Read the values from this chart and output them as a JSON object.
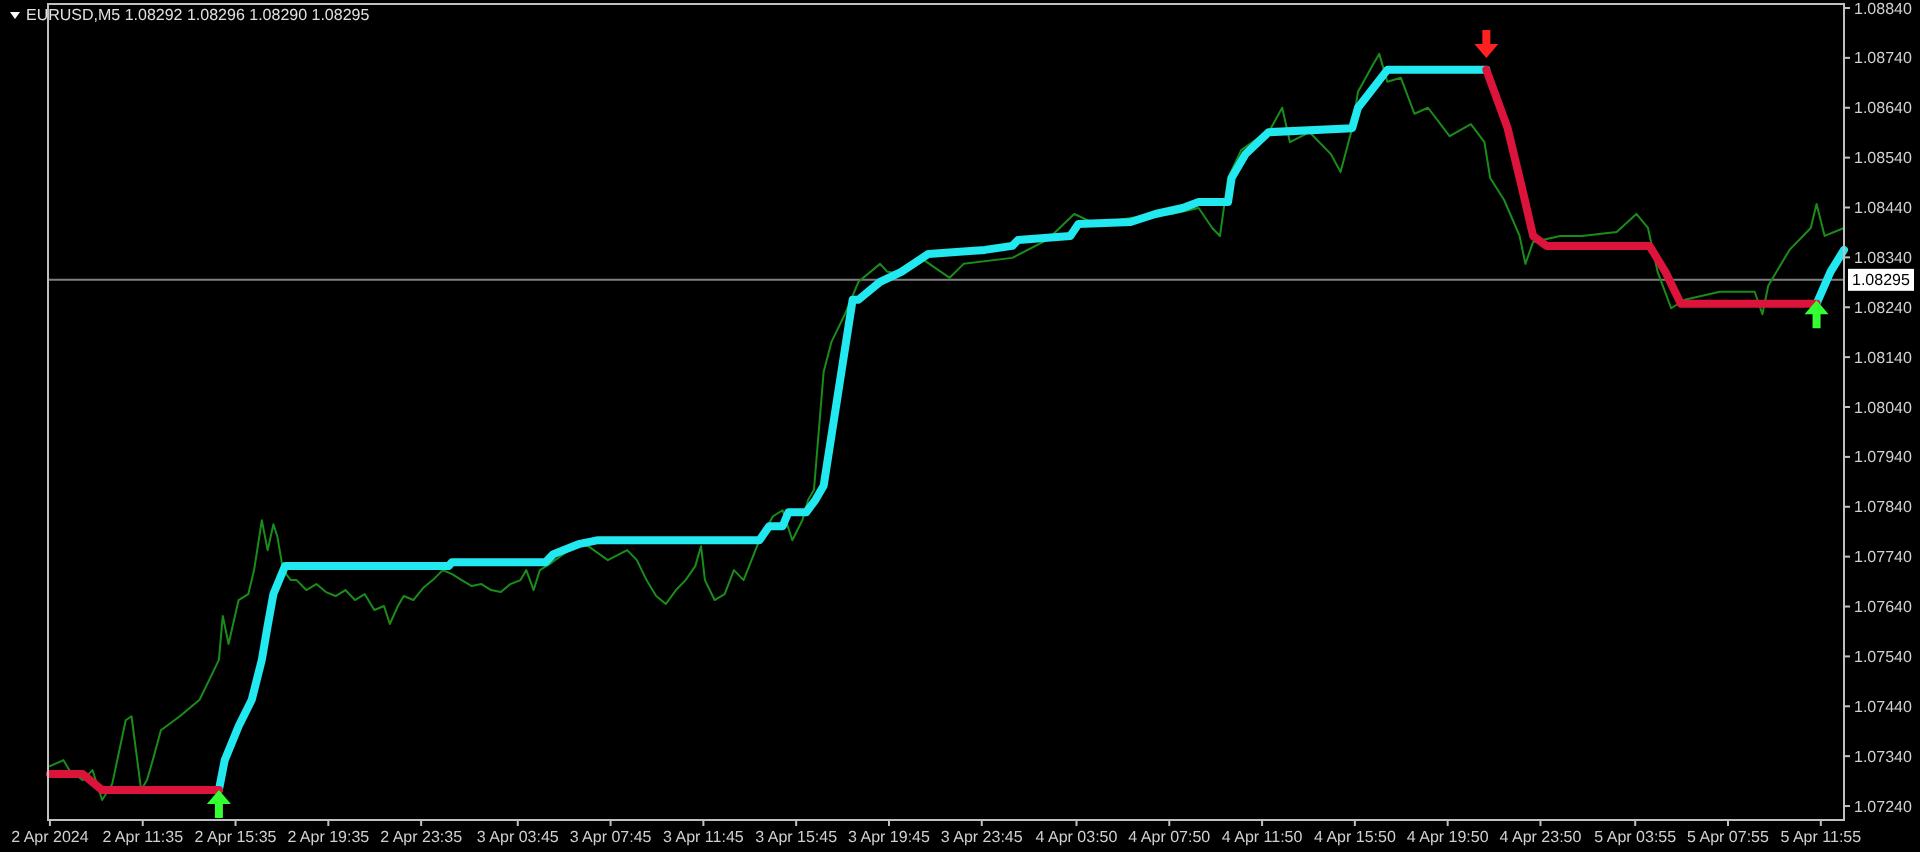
{
  "chart_data": {
    "type": "line",
    "title": "EURUSD,M5  1.08292 1.08296 1.08290 1.08295",
    "xlim": [
      "2024-04-02T07:30",
      "2024-04-05T12:55"
    ],
    "xticks": [
      {
        "value": "2024-04-02T07:35",
        "label": "2 Apr 2024"
      },
      {
        "value": "2024-04-02T11:35",
        "label": "2 Apr 11:35"
      },
      {
        "value": "2024-04-02T15:35",
        "label": "2 Apr 15:35"
      },
      {
        "value": "2024-04-02T19:35",
        "label": "2 Apr 19:35"
      },
      {
        "value": "2024-04-02T23:35",
        "label": "2 Apr 23:35"
      },
      {
        "value": "2024-04-03T03:45",
        "label": "3 Apr 03:45"
      },
      {
        "value": "2024-04-03T07:45",
        "label": "3 Apr 07:45"
      },
      {
        "value": "2024-04-03T11:45",
        "label": "3 Apr 11:45"
      },
      {
        "value": "2024-04-03T15:45",
        "label": "3 Apr 15:45"
      },
      {
        "value": "2024-04-03T19:45",
        "label": "3 Apr 19:45"
      },
      {
        "value": "2024-04-03T23:45",
        "label": "3 Apr 23:45"
      },
      {
        "value": "2024-04-04T03:50",
        "label": "4 Apr 03:50"
      },
      {
        "value": "2024-04-04T07:50",
        "label": "4 Apr 07:50"
      },
      {
        "value": "2024-04-04T11:50",
        "label": "4 Apr 11:50"
      },
      {
        "value": "2024-04-04T15:50",
        "label": "4 Apr 15:50"
      },
      {
        "value": "2024-04-04T19:50",
        "label": "4 Apr 19:50"
      },
      {
        "value": "2024-04-04T23:50",
        "label": "4 Apr 23:50"
      },
      {
        "value": "2024-04-05T03:55",
        "label": "5 Apr 03:55"
      },
      {
        "value": "2024-04-05T07:55",
        "label": "5 Apr 07:55"
      },
      {
        "value": "2024-04-05T11:55",
        "label": "5 Apr 11:55"
      }
    ],
    "ylim": [
      1.07212,
      1.08848
    ],
    "yticks": [
      {
        "value": 1.0884,
        "label": "1.08840"
      },
      {
        "value": 1.0874,
        "label": "1.08740"
      },
      {
        "value": 1.0864,
        "label": "1.08640"
      },
      {
        "value": 1.0854,
        "label": "1.08540"
      },
      {
        "value": 1.0844,
        "label": "1.08440"
      },
      {
        "value": 1.0834,
        "label": "1.08340"
      },
      {
        "value": 1.0824,
        "label": "1.08240"
      },
      {
        "value": 1.0814,
        "label": "1.08140"
      },
      {
        "value": 1.0804,
        "label": "1.08040"
      },
      {
        "value": 1.0794,
        "label": "1.07940"
      },
      {
        "value": 1.0784,
        "label": "1.07840"
      },
      {
        "value": 1.0774,
        "label": "1.07740"
      },
      {
        "value": 1.0764,
        "label": "1.07640"
      },
      {
        "value": 1.0754,
        "label": "1.07540"
      },
      {
        "value": 1.0744,
        "label": "1.07440"
      },
      {
        "value": 1.0734,
        "label": "1.07340"
      },
      {
        "value": 1.0724,
        "label": "1.07240"
      }
    ],
    "ref_lines": [
      {
        "axis": "y",
        "value": 1.08295,
        "label": "1.08295",
        "color": "#808080"
      }
    ],
    "line_style": "solid",
    "series": [
      {
        "color": "#1a8c1a",
        "x": [
          "2024-04-02T07:35",
          "2024-04-02T08:10",
          "2024-04-02T08:25",
          "2024-04-02T09:00",
          "2024-04-02T09:25",
          "2024-04-02T09:50",
          "2024-04-02T10:16",
          "2024-04-02T10:51",
          "2024-04-02T11:06",
          "2024-04-02T11:31",
          "2024-04-02T11:46",
          "2024-04-02T12:01",
          "2024-04-02T12:22",
          "2024-04-02T13:11",
          "2024-04-02T14:02",
          "2024-04-02T14:27",
          "2024-04-02T14:52",
          "2024-04-02T15:02",
          "2024-04-02T15:17",
          "2024-04-02T15:43",
          "2024-04-02T16:08",
          "2024-04-02T16:23",
          "2024-04-02T16:43",
          "2024-04-02T16:58",
          "2024-04-02T17:13",
          "2024-04-02T17:23",
          "2024-04-02T17:38",
          "2024-04-02T17:58",
          "2024-04-02T18:13",
          "2024-04-02T18:38",
          "2024-04-02T19:04",
          "2024-04-02T19:29",
          "2024-04-02T19:54",
          "2024-04-02T20:19",
          "2024-04-02T20:44",
          "2024-04-02T21:09",
          "2024-04-02T21:34",
          "2024-04-02T21:59",
          "2024-04-02T22:14",
          "2024-04-02T22:35",
          "2024-04-02T22:50",
          "2024-04-02T23:15",
          "2024-04-02T23:40",
          "2024-04-03T00:05",
          "2024-04-03T00:31",
          "2024-04-03T00:55",
          "2024-04-03T01:20",
          "2024-04-03T01:46",
          "2024-04-03T02:11",
          "2024-04-03T02:36",
          "2024-04-03T03:01",
          "2024-04-03T03:26",
          "2024-04-03T03:52",
          "2024-04-03T04:07",
          "2024-04-03T04:26",
          "2024-04-03T04:42",
          "2024-04-03T05:07",
          "2024-04-03T05:57",
          "2024-04-03T06:22",
          "2024-04-03T06:47",
          "2024-04-03T07:38",
          "2024-04-03T08:28",
          "2024-04-03T08:53",
          "2024-04-03T09:18",
          "2024-04-03T09:43",
          "2024-04-03T10:08",
          "2024-04-03T10:34",
          "2024-04-03T10:59",
          "2024-04-03T11:24",
          "2024-04-03T11:39",
          "2024-04-03T11:49",
          "2024-04-03T12:14",
          "2024-04-03T12:40",
          "2024-04-03T13:04",
          "2024-04-03T13:29",
          "2024-04-03T14:10",
          "2024-04-03T14:45",
          "2024-04-03T15:10",
          "2024-04-03T15:35",
          "2024-04-03T16:01",
          "2024-04-03T16:16",
          "2024-04-03T16:31",
          "2024-04-03T16:56",
          "2024-04-03T17:16",
          "2024-04-03T17:51",
          "2024-04-03T18:26",
          "2024-04-03T19:22",
          "2024-04-03T19:41",
          "2024-04-03T20:17",
          "2024-04-03T21:07",
          "2024-04-03T22:22",
          "2024-04-03T22:58",
          "2024-04-04T01:04",
          "2024-04-04T02:34",
          "2024-04-04T03:44",
          "2024-04-04T04:40",
          "2024-04-04T06:10",
          "2024-04-04T07:56",
          "2024-04-04T09:06",
          "2024-04-04T09:41",
          "2024-04-04T10:01",
          "2024-04-04T10:22",
          "2024-04-04T10:56",
          "2024-04-04T11:47",
          "2024-04-04T12:07",
          "2024-04-04T12:42",
          "2024-04-04T13:02",
          "2024-04-04T13:53",
          "2024-04-04T14:48",
          "2024-04-04T15:13",
          "2024-04-04T15:43",
          "2024-04-04T15:58",
          "2024-04-04T16:38",
          "2024-04-04T16:53",
          "2024-04-04T17:14",
          "2024-04-04T17:49",
          "2024-04-04T18:24",
          "2024-04-04T18:59",
          "2024-04-04T19:55",
          "2024-04-04T20:50",
          "2024-04-04T21:25",
          "2024-04-04T21:40",
          "2024-04-04T22:16",
          "2024-04-04T22:56",
          "2024-04-04T23:11",
          "2024-04-04T23:31",
          "2024-04-05T00:41",
          "2024-04-05T01:37",
          "2024-04-05T03:07",
          "2024-04-05T03:58",
          "2024-04-05T04:28",
          "2024-04-05T04:53",
          "2024-04-05T05:28",
          "2024-04-05T06:03",
          "2024-04-05T07:34",
          "2024-04-05T09:04",
          "2024-04-05T09:24",
          "2024-04-05T09:39",
          "2024-04-05T10:34",
          "2024-04-05T11:29",
          "2024-04-05T11:44",
          "2024-04-05T12:05",
          "2024-04-05T12:55"
        ],
        "values": [
          1.0732,
          1.07332,
          1.07312,
          1.07292,
          1.07312,
          1.07252,
          1.07284,
          1.07412,
          1.0742,
          1.07272,
          1.07292,
          1.07332,
          1.07392,
          1.0742,
          1.07453,
          1.07493,
          1.07533,
          1.07621,
          1.07565,
          1.07653,
          1.07665,
          1.07713,
          1.07813,
          1.07753,
          1.07805,
          1.07781,
          1.07713,
          1.07693,
          1.07693,
          1.07673,
          1.07685,
          1.07669,
          1.07661,
          1.07673,
          1.07653,
          1.07665,
          1.07633,
          1.07641,
          1.07605,
          1.07641,
          1.07661,
          1.07653,
          1.07677,
          1.07693,
          1.07713,
          1.07705,
          1.07693,
          1.07681,
          1.07685,
          1.07673,
          1.07669,
          1.07685,
          1.07693,
          1.07713,
          1.07673,
          1.07713,
          1.07725,
          1.07753,
          1.07765,
          1.07761,
          1.07733,
          1.07753,
          1.07733,
          1.07693,
          1.07661,
          1.07645,
          1.07673,
          1.07693,
          1.07721,
          1.07761,
          1.07693,
          1.07653,
          1.07665,
          1.07713,
          1.07693,
          1.07773,
          1.07821,
          1.07833,
          1.07773,
          1.07813,
          1.07854,
          1.07874,
          1.0811,
          1.0817,
          1.08226,
          1.08291,
          1.08327,
          1.08311,
          1.08307,
          1.08339,
          1.08299,
          1.08327,
          1.08339,
          1.08375,
          1.08427,
          1.08407,
          1.08419,
          1.08427,
          1.08439,
          1.08399,
          1.08383,
          1.08499,
          1.08555,
          1.08583,
          1.08591,
          1.0864,
          1.08571,
          1.08591,
          1.08547,
          1.08511,
          1.08599,
          1.08672,
          1.08728,
          1.08748,
          1.08692,
          1.087,
          1.08628,
          1.0864,
          1.08583,
          1.08607,
          1.08571,
          1.08499,
          1.08455,
          1.08383,
          1.08327,
          1.08371,
          1.08383,
          1.08383,
          1.08391,
          1.08427,
          1.08399,
          1.08311,
          1.08238,
          1.08255,
          1.08271,
          1.08271,
          1.08226,
          1.08283,
          1.08355,
          1.08399,
          1.08447,
          1.08383,
          1.08399
        ]
      },
      {
        "color": "#22e8f0",
        "x": [
          "2024-04-02T14:52",
          "2024-04-02T15:07",
          "2024-04-02T15:43",
          "2024-04-02T16:17",
          "2024-04-02T16:43",
          "2024-04-02T16:58",
          "2024-04-02T17:13",
          "2024-04-02T17:43",
          "2024-04-03T00:46",
          "2024-04-03T00:55",
          "2024-04-03T04:57",
          "2024-04-03T05:17",
          "2024-04-03T06:22",
          "2024-04-03T07:13",
          "2024-04-03T14:10",
          "2024-04-03T14:35",
          "2024-04-03T15:10",
          "2024-04-03T15:25",
          "2024-04-03T16:11",
          "2024-04-03T16:35",
          "2024-04-03T16:56",
          "2024-04-03T18:11",
          "2024-04-03T18:26",
          "2024-04-03T19:22",
          "2024-04-03T20:17",
          "2024-04-03T21:27",
          "2024-04-03T23:53",
          "2024-04-04T01:04",
          "2024-04-04T01:19",
          "2024-04-04T03:34",
          "2024-04-04T03:55",
          "2024-04-04T06:10",
          "2024-04-04T07:14",
          "2024-04-04T08:25",
          "2024-04-04T09:06",
          "2024-04-04T10:22",
          "2024-04-04T10:31",
          "2024-04-04T11:07",
          "2024-04-04T12:07",
          "2024-04-04T15:43",
          "2024-04-04T15:58",
          "2024-04-04T17:14",
          "2024-04-04T21:30",
          "2024-04-04T21:40",
          "2024-04-05T11:44",
          "2024-04-05T12:20",
          "2024-04-05T12:55"
        ],
        "values": [
          1.07272,
          1.07332,
          1.074,
          1.07453,
          1.07533,
          1.07601,
          1.07665,
          1.07721,
          1.07721,
          1.07729,
          1.07729,
          1.07745,
          1.07765,
          1.07773,
          1.07773,
          1.07801,
          1.07801,
          1.07829,
          1.07829,
          1.07854,
          1.07882,
          1.08255,
          1.08255,
          1.08291,
          1.08311,
          1.08347,
          1.08355,
          1.08363,
          1.08375,
          1.08383,
          1.08407,
          1.08411,
          1.08427,
          1.08439,
          1.08451,
          1.08451,
          1.08499,
          1.08547,
          1.08591,
          1.08599,
          1.0864,
          1.08716,
          1.08716,
          null,
          1.08247,
          1.08311,
          1.08355
        ]
      },
      {
        "color": "#dc143c",
        "x": [
          "2024-04-02T07:35",
          "2024-04-02T09:00",
          "2024-04-02T09:50",
          "2024-04-02T14:52",
          "2024-04-02T15:00",
          "2024-04-04T21:30",
          "2024-04-04T22:25",
          "2024-04-04T23:01",
          "2024-04-04T23:31",
          "2024-04-05T00:06",
          "2024-04-05T04:32",
          "2024-04-05T05:13",
          "2024-04-05T05:53",
          "2024-04-05T11:44"
        ],
        "values": [
          1.07304,
          1.07304,
          1.07272,
          1.07272,
          null,
          1.08716,
          1.08599,
          1.08483,
          1.08383,
          1.08363,
          1.08363,
          1.08311,
          1.08247,
          1.08247
        ]
      },
      {
        "type": "scatter",
        "color": "#33ff33",
        "x": [
          "2024-04-02T14:52",
          "2024-04-05T11:44"
        ],
        "values": [
          1.07244,
          1.08226
        ]
      },
      {
        "type": "scatter",
        "color": "#ff2020",
        "x": [
          "2024-04-04T21:30"
        ],
        "values": [
          1.08768
        ]
      }
    ]
  }
}
